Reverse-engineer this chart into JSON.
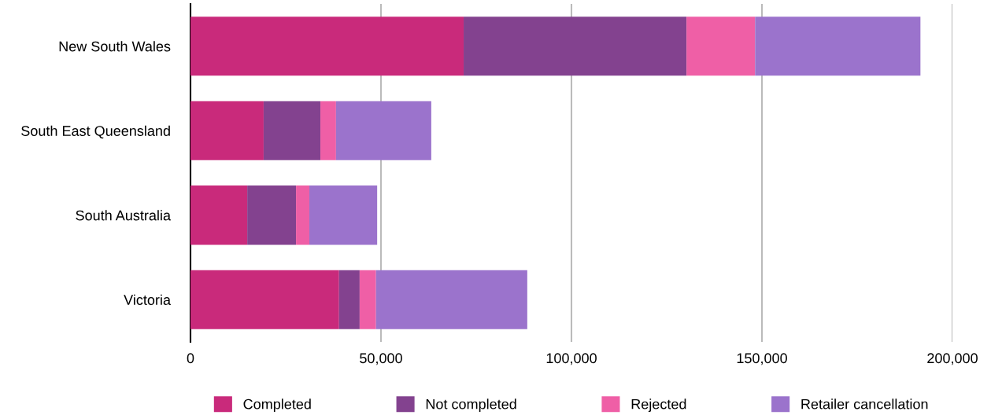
{
  "chart_data": {
    "type": "bar",
    "orientation": "horizontal",
    "stacked": true,
    "categories": [
      "New South Wales",
      "South East Queensland",
      "South Australia",
      "Victoria"
    ],
    "series": [
      {
        "name": "Completed",
        "color": "#c92a7b",
        "values": [
          71700,
          19200,
          14900,
          39000
        ]
      },
      {
        "name": "Not completed",
        "color": "#83428f",
        "values": [
          58500,
          14900,
          12800,
          5400
        ]
      },
      {
        "name": "Rejected",
        "color": "#ef5fa6",
        "values": [
          18000,
          4100,
          3500,
          4300
        ]
      },
      {
        "name": "Retailer cancellation",
        "color": "#9b73cc",
        "values": [
          43400,
          25000,
          17800,
          39700
        ]
      }
    ],
    "xlim": [
      0,
      200000
    ],
    "xticks": [
      {
        "value": 0,
        "label": "0"
      },
      {
        "value": 50000,
        "label": "50,000"
      },
      {
        "value": 100000,
        "label": "100,000"
      },
      {
        "value": 150000,
        "label": "150,000"
      },
      {
        "value": 200000,
        "label": "200,000"
      }
    ],
    "grid": "x",
    "legend": "bottom"
  }
}
